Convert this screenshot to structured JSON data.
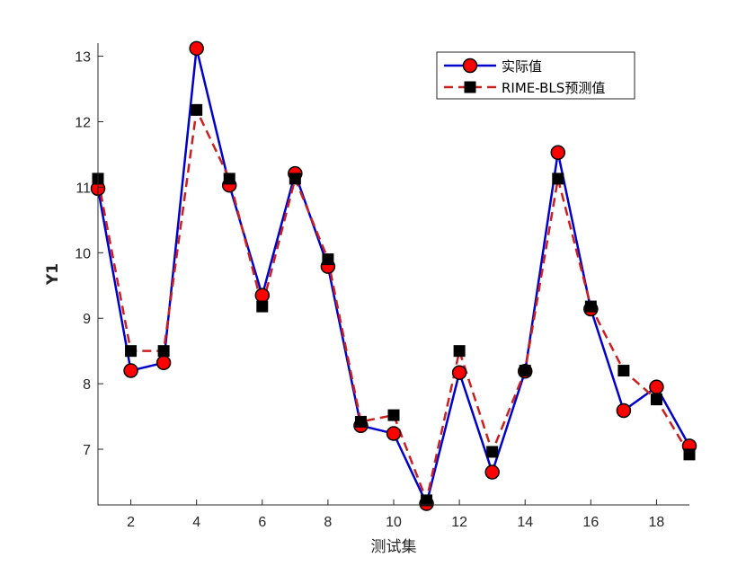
{
  "chart_data": {
    "type": "line",
    "xlabel": "测试集",
    "ylabel": "Y1",
    "xlim": [
      1,
      19
    ],
    "ylim": [
      6.15,
      13.2
    ],
    "xticks": [
      "2",
      "4",
      "6",
      "8",
      "10",
      "12",
      "14",
      "16",
      "18"
    ],
    "yticks": [
      "7",
      "8",
      "9",
      "10",
      "11",
      "12",
      "13"
    ],
    "legend_position": "top-right",
    "x": [
      1,
      2,
      3,
      4,
      5,
      6,
      7,
      8,
      9,
      10,
      11,
      12,
      13,
      14,
      15,
      16,
      17,
      18,
      19
    ],
    "series": [
      {
        "name": "实际值",
        "color": "#0000cc",
        "marker": "circle",
        "marker_color": "#ff0000",
        "line_style": "solid",
        "values": [
          10.98,
          8.2,
          8.32,
          13.12,
          11.03,
          9.35,
          11.21,
          9.79,
          7.36,
          7.24,
          6.17,
          8.17,
          6.65,
          8.19,
          11.53,
          9.14,
          7.59,
          7.95,
          7.05
        ]
      },
      {
        "name": "RIME-BLS预测值",
        "color": "#cc1f1f",
        "marker": "square",
        "marker_color": "#000000",
        "line_style": "dashed",
        "values": [
          11.13,
          8.5,
          8.5,
          12.18,
          11.13,
          9.18,
          11.13,
          9.9,
          7.42,
          7.52,
          6.22,
          8.5,
          6.96,
          8.2,
          11.13,
          9.18,
          8.2,
          7.76,
          6.92
        ]
      }
    ]
  }
}
